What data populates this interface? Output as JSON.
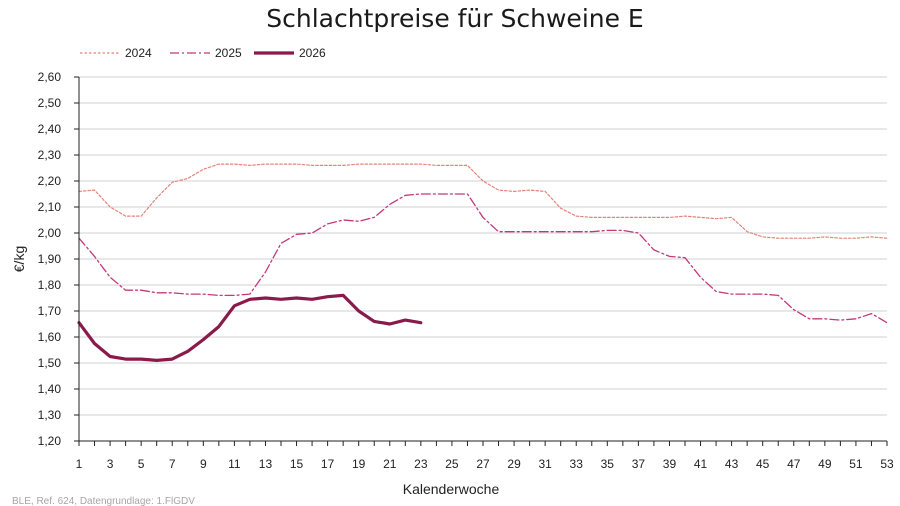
{
  "colors": {
    "s2024": "#e4837a",
    "s2025": "#c2397b",
    "s2026": "#8a1a4b",
    "grid": "#d0d0d0",
    "axis": "#222222"
  },
  "chart_data": {
    "type": "line",
    "title": "Schlachtpreise für Schweine E",
    "xlabel": "Kalenderwoche",
    "ylabel": "€/kg",
    "xlim": [
      1,
      53
    ],
    "ylim": [
      1.2,
      2.6
    ],
    "xticks": [
      1,
      3,
      5,
      7,
      9,
      11,
      13,
      15,
      17,
      19,
      21,
      23,
      25,
      27,
      29,
      31,
      33,
      35,
      37,
      39,
      41,
      43,
      45,
      47,
      49,
      51,
      53
    ],
    "yticks": [
      "1,20",
      "1,30",
      "1,40",
      "1,50",
      "1,60",
      "1,70",
      "1,80",
      "1,90",
      "2,00",
      "2,10",
      "2,20",
      "2,30",
      "2,40",
      "2,50",
      "2,60"
    ],
    "grid": true,
    "legend_position": "top-left",
    "source": "BLE, Ref. 624, Datengrundlage: 1.FlGDV",
    "series": [
      {
        "name": "2024",
        "style": "dotted",
        "color_key": "s2024",
        "values": [
          2.16,
          2.165,
          2.1,
          2.065,
          2.065,
          2.135,
          2.195,
          2.21,
          2.245,
          2.265,
          2.265,
          2.26,
          2.265,
          2.265,
          2.265,
          2.26,
          2.26,
          2.26,
          2.265,
          2.265,
          2.265,
          2.265,
          2.265,
          2.26,
          2.26,
          2.26,
          2.2,
          2.165,
          2.16,
          2.165,
          2.16,
          2.095,
          2.065,
          2.06,
          2.06,
          2.06,
          2.06,
          2.06,
          2.06,
          2.065,
          2.06,
          2.055,
          2.06,
          2.005,
          1.985,
          1.98,
          1.98,
          1.98,
          1.985,
          1.98,
          1.98,
          1.985,
          1.98
        ]
      },
      {
        "name": "2025",
        "style": "dashdot",
        "color_key": "s2025",
        "values": [
          1.98,
          1.91,
          1.83,
          1.78,
          1.78,
          1.77,
          1.77,
          1.765,
          1.765,
          1.76,
          1.76,
          1.765,
          1.85,
          1.96,
          1.995,
          2.0,
          2.035,
          2.05,
          2.045,
          2.06,
          2.11,
          2.145,
          2.15,
          2.15,
          2.15,
          2.15,
          2.06,
          2.005,
          2.005,
          2.005,
          2.005,
          2.005,
          2.005,
          2.005,
          2.01,
          2.01,
          2.0,
          1.935,
          1.91,
          1.905,
          1.83,
          1.775,
          1.765,
          1.765,
          1.765,
          1.76,
          1.705,
          1.67,
          1.67,
          1.665,
          1.67,
          1.69,
          1.655
        ]
      },
      {
        "name": "2026",
        "style": "solid",
        "color_key": "s2026",
        "values": [
          1.655,
          1.575,
          1.525,
          1.515,
          1.515,
          1.51,
          1.515,
          1.545,
          1.59,
          1.64,
          1.72,
          1.745,
          1.75,
          1.745,
          1.75,
          1.745,
          1.755,
          1.76,
          1.7,
          1.66,
          1.65,
          1.665,
          1.655
        ]
      }
    ]
  }
}
